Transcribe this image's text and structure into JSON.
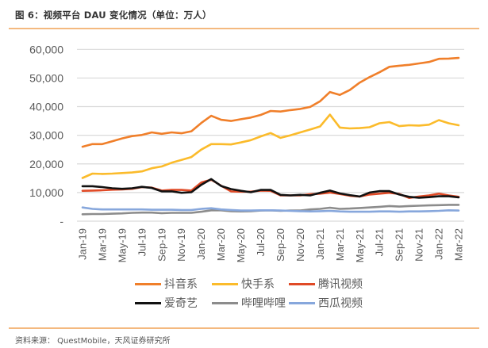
{
  "figure": {
    "title": "图 6：视频平台 DAU 变化情况（单位：万人）",
    "source": "资料来源：  QuestMobile，天风证券研究所"
  },
  "chart_data": {
    "type": "line",
    "title": "视频平台 DAU 变化情况（单位：万人）",
    "xlabel": "",
    "ylabel": "",
    "ylim": [
      0,
      60000
    ],
    "yticks": [
      0,
      10000,
      20000,
      30000,
      40000,
      50000,
      60000
    ],
    "ytick_labels": [
      "-",
      "10,000",
      "20,000",
      "30,000",
      "40,000",
      "50,000",
      "60,000"
    ],
    "grid": true,
    "legend_position": "bottom",
    "x": [
      "Jan-19",
      "Feb-19",
      "Mar-19",
      "Apr-19",
      "May-19",
      "Jun-19",
      "Jul-19",
      "Aug-19",
      "Sep-19",
      "Oct-19",
      "Nov-19",
      "Dec-19",
      "Jan-20",
      "Feb-20",
      "Mar-20",
      "Apr-20",
      "May-20",
      "Jun-20",
      "Jul-20",
      "Aug-20",
      "Sep-20",
      "Oct-20",
      "Nov-20",
      "Dec-20",
      "Jan-21",
      "Feb-21",
      "Mar-21",
      "Apr-21",
      "May-21",
      "Jun-21",
      "Jul-21",
      "Aug-21",
      "Sep-21",
      "Oct-21",
      "Nov-21",
      "Dec-21",
      "Jan-22",
      "Feb-22",
      "Mar-22"
    ],
    "xtick_labels": [
      "Jan-19",
      "Mar-19",
      "May-19",
      "Jul-19",
      "Sep-19",
      "Nov-19",
      "Jan-20",
      "Mar-20",
      "May-20",
      "Jul-20",
      "Sep-20",
      "Nov-20",
      "Jan-21",
      "Mar-21",
      "May-21",
      "Jul-21",
      "Sep-21",
      "Nov-21",
      "Jan-22",
      "Mar-22"
    ],
    "series": [
      {
        "name": "抖音系",
        "color": "#f07f2a",
        "values": [
          26000,
          26900,
          26900,
          27900,
          28900,
          29700,
          30100,
          31000,
          30500,
          31000,
          30700,
          31400,
          34300,
          36800,
          35400,
          35000,
          35600,
          36200,
          37100,
          38500,
          38300,
          38800,
          39200,
          39900,
          41900,
          45100,
          44100,
          45800,
          48400,
          50300,
          52000,
          53900,
          54300,
          54600,
          55100,
          55600,
          56700,
          56800,
          57000
        ]
      },
      {
        "name": "快手系",
        "color": "#fbbb2b",
        "values": [
          15100,
          16600,
          16500,
          16600,
          16800,
          17000,
          17400,
          18500,
          19100,
          20400,
          21400,
          22400,
          25000,
          26900,
          26900,
          26800,
          27500,
          28300,
          29600,
          30800,
          29100,
          30000,
          31000,
          32000,
          33100,
          37200,
          32700,
          32400,
          32500,
          32800,
          34200,
          34600,
          33200,
          33500,
          33400,
          33700,
          35300,
          34200,
          33500
        ]
      },
      {
        "name": "腾讯视频",
        "color": "#e04a26",
        "values": [
          10600,
          10700,
          10800,
          11000,
          11100,
          11300,
          11900,
          11700,
          10700,
          10900,
          10900,
          10700,
          13500,
          14500,
          12400,
          10400,
          10300,
          10300,
          10700,
          10600,
          9000,
          9000,
          9000,
          9400,
          9600,
          10000,
          9500,
          8900,
          8600,
          9300,
          9600,
          9900,
          9500,
          8100,
          8600,
          9000,
          9600,
          9000,
          8500
        ]
      },
      {
        "name": "爱奇艺",
        "color": "#111111",
        "values": [
          12200,
          12200,
          11900,
          11500,
          11300,
          11500,
          12000,
          11600,
          10400,
          10400,
          9900,
          10100,
          12700,
          14700,
          12300,
          11200,
          10600,
          10100,
          10900,
          10900,
          9200,
          9000,
          9200,
          9000,
          9900,
          10700,
          9700,
          9100,
          8600,
          10000,
          10500,
          10500,
          9300,
          8500,
          8200,
          8400,
          8700,
          8700,
          8300
        ]
      },
      {
        "name": "哔哩哔哩",
        "color": "#8c8c8c",
        "values": [
          2400,
          2500,
          2500,
          2600,
          2700,
          2900,
          3000,
          3000,
          2800,
          2900,
          2900,
          2900,
          3300,
          3800,
          3800,
          3500,
          3400,
          3500,
          3700,
          3800,
          3600,
          3700,
          3700,
          4100,
          4300,
          4700,
          4300,
          4400,
          4600,
          4800,
          5000,
          5300,
          5100,
          5300,
          5400,
          5500,
          5600,
          5700,
          5700
        ]
      },
      {
        "name": "西瓜视频",
        "color": "#87a7dc",
        "values": [
          4800,
          4300,
          4100,
          4100,
          4100,
          4100,
          4100,
          4000,
          4000,
          4000,
          3900,
          3900,
          4300,
          4500,
          4100,
          3900,
          3700,
          3700,
          3800,
          3800,
          3700,
          3600,
          3500,
          3400,
          3500,
          3600,
          3400,
          3300,
          3300,
          3300,
          3400,
          3400,
          3300,
          3400,
          3400,
          3500,
          3600,
          3800,
          3700
        ]
      }
    ]
  },
  "legend": {
    "rows": [
      [
        {
          "label": "抖音系",
          "color": "#f07f2a"
        },
        {
          "label": "快手系",
          "color": "#fbbb2b"
        },
        {
          "label": "腾讯视频",
          "color": "#e04a26"
        }
      ],
      [
        {
          "label": "爱奇艺",
          "color": "#111111"
        },
        {
          "label": "哔哩哔哩",
          "color": "#8c8c8c"
        },
        {
          "label": "西瓜视频",
          "color": "#87a7dc"
        }
      ]
    ]
  }
}
